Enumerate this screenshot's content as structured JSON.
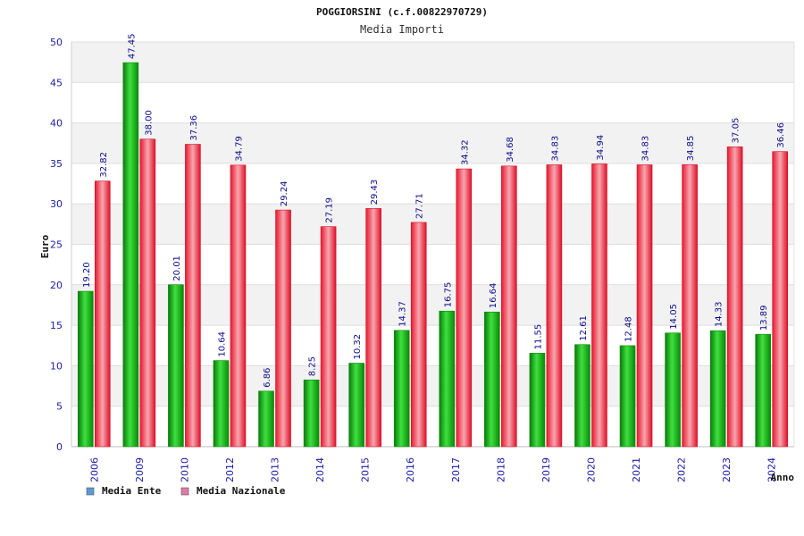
{
  "chart_data": {
    "type": "bar",
    "title": "POGGIORSINI (c.f.00822970729)",
    "subtitle": "Media Importi",
    "xlabel": "Anno",
    "ylabel": "Euro",
    "ylim": [
      0,
      50
    ],
    "yticks": [
      0,
      5,
      10,
      15,
      20,
      25,
      30,
      35,
      40,
      45,
      50
    ],
    "grid": true,
    "legend_position": "bottom-left",
    "categories": [
      "2006",
      "2009",
      "2010",
      "2012",
      "2013",
      "2014",
      "2015",
      "2016",
      "2017",
      "2018",
      "2019",
      "2020",
      "2021",
      "2022",
      "2023",
      "2024"
    ],
    "series": [
      {
        "name": "Media Ente",
        "legend_color": "#5b9bd5",
        "bar_color": "#14b014",
        "values": [
          19.2,
          47.45,
          20.01,
          10.64,
          6.86,
          8.25,
          10.32,
          14.37,
          16.75,
          16.64,
          11.55,
          12.61,
          12.48,
          14.05,
          14.33,
          13.89
        ],
        "labels": [
          "19.20",
          "47.45",
          "20.01",
          "10.64",
          "6.86",
          "8.25",
          "10.32",
          "14.37",
          "16.75",
          "16.64",
          "11.55",
          "12.61",
          "12.48",
          "14.05",
          "14.33",
          "13.89"
        ]
      },
      {
        "name": "Media Nazionale",
        "legend_color": "#e27aa6",
        "bar_color": "#e8182e",
        "values": [
          32.82,
          38.0,
          37.36,
          34.79,
          29.24,
          27.19,
          29.43,
          27.71,
          34.32,
          34.68,
          34.83,
          34.94,
          34.83,
          34.85,
          37.05,
          36.46
        ],
        "labels": [
          "32.82",
          "38.00",
          "37.36",
          "34.79",
          "29.24",
          "27.19",
          "29.43",
          "27.71",
          "34.32",
          "34.68",
          "34.83",
          "34.94",
          "34.83",
          "34.85",
          "37.05",
          "36.46"
        ]
      }
    ],
    "colors": {
      "axis_text": "#1a1aa6",
      "label_text": "#0a0a8c",
      "band": "#f2f2f2",
      "grid": "#dedede"
    }
  }
}
